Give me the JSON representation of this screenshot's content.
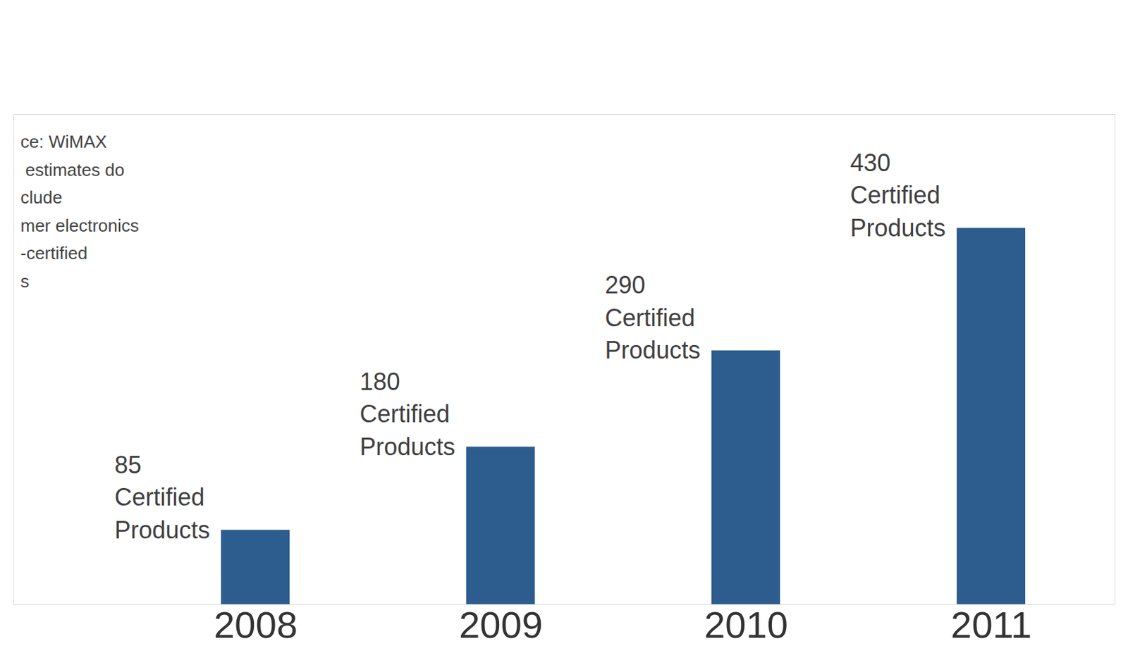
{
  "chart_data": {
    "type": "bar",
    "categories": [
      "2008",
      "2009",
      "2010",
      "2011"
    ],
    "values": [
      85,
      180,
      290,
      430
    ],
    "value_labels": [
      "85 Certified Products",
      "180 Certified Products",
      "290 Certified Products",
      "430 Certified Products"
    ],
    "data_labels": true,
    "color": "#2d5d8f",
    "ylim": [
      0,
      560
    ],
    "tick_labels": "x",
    "annotations": [
      "ce: WiMAX",
      " estimates do",
      "clude",
      "mer electronics",
      "-certified",
      "s"
    ]
  }
}
